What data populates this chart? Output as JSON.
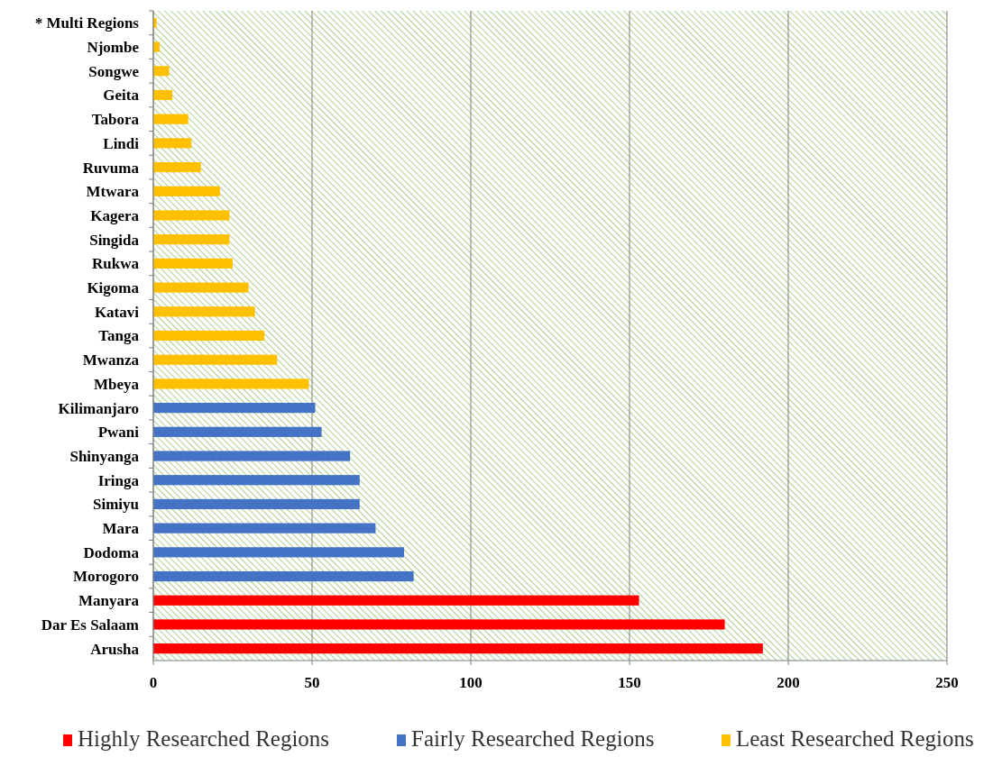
{
  "chart_data": {
    "type": "bar",
    "orientation": "horizontal",
    "stacked": true,
    "categories": [
      "* Multi Regions",
      "Njombe",
      "Songwe",
      "Geita",
      "Tabora",
      "Lindi",
      "Ruvuma",
      "Mtwara",
      "Kagera",
      "Singida",
      "Rukwa",
      "Kigoma",
      "Katavi",
      "Tanga",
      "Mwanza",
      "Mbeya",
      "Kilimanjaro",
      "Pwani",
      "Shinyanga",
      "Iringa",
      "Simiyu",
      "Mara",
      "Dodoma",
      "Morogoro",
      "Manyara",
      "Dar Es Salaam",
      "Arusha"
    ],
    "series": [
      {
        "name": "Highly Researched Regions",
        "color": "#ff0000",
        "values": [
          null,
          null,
          null,
          null,
          null,
          null,
          null,
          null,
          null,
          null,
          null,
          null,
          null,
          null,
          null,
          null,
          null,
          null,
          null,
          null,
          null,
          null,
          null,
          null,
          153,
          180,
          192
        ]
      },
      {
        "name": "Fairly Researched Regions",
        "color": "#4472c4",
        "values": [
          null,
          null,
          null,
          null,
          null,
          null,
          null,
          null,
          null,
          null,
          null,
          null,
          null,
          null,
          null,
          null,
          51,
          53,
          62,
          65,
          65,
          70,
          79,
          82,
          null,
          null,
          null
        ]
      },
      {
        "name": "Least Researched Regions",
        "color": "#ffc000",
        "values": [
          1,
          2,
          5,
          6,
          11,
          12,
          15,
          21,
          24,
          24,
          25,
          30,
          32,
          35,
          39,
          49,
          null,
          null,
          null,
          null,
          null,
          null,
          null,
          null,
          null,
          null,
          null
        ]
      }
    ],
    "xlim": [
      0,
      250
    ],
    "xticks": [
      0,
      50,
      100,
      150,
      200,
      250
    ],
    "grid": "x",
    "legend": "bottom"
  }
}
